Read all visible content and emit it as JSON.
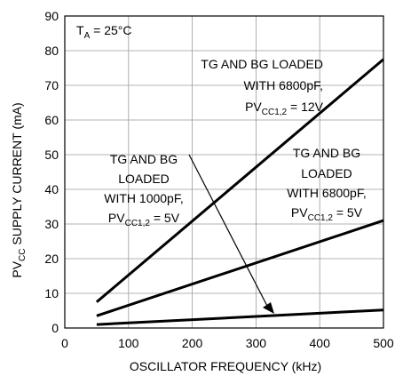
{
  "chart_data": {
    "type": "line",
    "title": "",
    "xlabel": "OSCILLATOR FREQUENCY (kHz)",
    "ylabel": {
      "main": "PV",
      "sub": "CC",
      "rest": " SUPPLY CURRENT (mA)"
    },
    "xlim": [
      0,
      500
    ],
    "ylim": [
      0,
      90
    ],
    "x_ticks": [
      "0",
      "100",
      "200",
      "300",
      "400",
      "500"
    ],
    "y_ticks": [
      "0",
      "10",
      "20",
      "30",
      "40",
      "50",
      "60",
      "70",
      "80",
      "90"
    ],
    "grid": true,
    "series": [
      {
        "x": [
          50,
          500
        ],
        "y": [
          7.5,
          77.5
        ]
      },
      {
        "x": [
          50,
          500
        ],
        "y": [
          3.5,
          31
        ]
      },
      {
        "x": [
          50,
          500
        ],
        "y": [
          1,
          5.2
        ]
      }
    ],
    "annotations": {
      "temp": {
        "main": "T",
        "sub": "A",
        "rest": " = 25°C"
      },
      "top": {
        "line1": "TG AND BG LOADED",
        "line2": "WITH 6800pF,",
        "line3_main": "PV",
        "line3_sub": "CC1,2",
        "line3_rest": " = 12V"
      },
      "middle": {
        "line1": "TG AND BG",
        "line2": "LOADED",
        "line3": "WITH 6800pF,",
        "line4_main": "PV",
        "line4_sub": "CC1,2",
        "line4_rest": " = 5V"
      },
      "bottom": {
        "line1": "TG AND BG",
        "line2": "LOADED",
        "line3": "WITH 1000pF,",
        "line4_main": "PV",
        "line4_sub": "CC1,2",
        "line4_rest": " = 5V"
      }
    }
  }
}
